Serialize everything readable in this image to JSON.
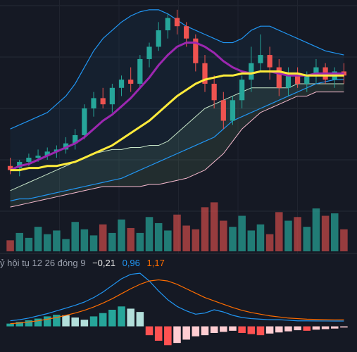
{
  "colors": {
    "background": "#151924",
    "up": "#26a69a",
    "down": "#ef5350",
    "ma_fast": "#9c27b0",
    "ma_slow": "#ffeb3b",
    "bb_band": "#2196f3",
    "cloud_top": "#c8e6c9",
    "cloud_bottom": "#f8bbd0",
    "macd": "#2196f3",
    "signal": "#ff6d00"
  },
  "macd_legend": {
    "label": "ỷ hội tụ 12 26 đóng 9",
    "hist": "−0,21",
    "macd": "0,96",
    "signal": "1,17"
  },
  "chart_data": [
    {
      "type": "candlestick",
      "ylim": [
        0,
        100
      ],
      "grid": true,
      "candles": [
        {
          "o": 22,
          "h": 26,
          "l": 18,
          "c": 20
        },
        {
          "o": 21,
          "h": 25,
          "l": 17,
          "c": 24
        },
        {
          "o": 24,
          "h": 28,
          "l": 22,
          "c": 26
        },
        {
          "o": 26,
          "h": 30,
          "l": 24,
          "c": 27
        },
        {
          "o": 27,
          "h": 31,
          "l": 25,
          "c": 29
        },
        {
          "o": 29,
          "h": 32,
          "l": 26,
          "c": 30
        },
        {
          "o": 30,
          "h": 36,
          "l": 28,
          "c": 33
        },
        {
          "o": 33,
          "h": 40,
          "l": 30,
          "c": 37
        },
        {
          "o": 37,
          "h": 52,
          "l": 35,
          "c": 50
        },
        {
          "o": 50,
          "h": 58,
          "l": 46,
          "c": 55
        },
        {
          "o": 55,
          "h": 60,
          "l": 50,
          "c": 52
        },
        {
          "o": 52,
          "h": 62,
          "l": 48,
          "c": 60
        },
        {
          "o": 60,
          "h": 66,
          "l": 56,
          "c": 64
        },
        {
          "o": 64,
          "h": 70,
          "l": 58,
          "c": 62
        },
        {
          "o": 62,
          "h": 76,
          "l": 60,
          "c": 74
        },
        {
          "o": 74,
          "h": 82,
          "l": 70,
          "c": 80
        },
        {
          "o": 80,
          "h": 92,
          "l": 78,
          "c": 88
        },
        {
          "o": 88,
          "h": 96,
          "l": 84,
          "c": 94
        },
        {
          "o": 94,
          "h": 98,
          "l": 86,
          "c": 90
        },
        {
          "o": 90,
          "h": 92,
          "l": 80,
          "c": 84
        },
        {
          "o": 84,
          "h": 86,
          "l": 68,
          "c": 72
        },
        {
          "o": 72,
          "h": 76,
          "l": 58,
          "c": 62
        },
        {
          "o": 62,
          "h": 66,
          "l": 50,
          "c": 54
        },
        {
          "o": 54,
          "h": 58,
          "l": 40,
          "c": 44
        },
        {
          "o": 44,
          "h": 56,
          "l": 42,
          "c": 54
        },
        {
          "o": 54,
          "h": 66,
          "l": 50,
          "c": 64
        },
        {
          "o": 64,
          "h": 80,
          "l": 58,
          "c": 72
        },
        {
          "o": 72,
          "h": 86,
          "l": 68,
          "c": 76
        },
        {
          "o": 76,
          "h": 80,
          "l": 64,
          "c": 70
        },
        {
          "o": 70,
          "h": 74,
          "l": 56,
          "c": 60
        },
        {
          "o": 60,
          "h": 70,
          "l": 56,
          "c": 66
        },
        {
          "o": 66,
          "h": 70,
          "l": 60,
          "c": 62
        },
        {
          "o": 62,
          "h": 68,
          "l": 58,
          "c": 66
        },
        {
          "o": 66,
          "h": 74,
          "l": 62,
          "c": 70
        },
        {
          "o": 70,
          "h": 72,
          "l": 62,
          "c": 64
        },
        {
          "o": 64,
          "h": 70,
          "l": 60,
          "c": 68
        },
        {
          "o": 68,
          "h": 72,
          "l": 62,
          "c": 66
        }
      ],
      "ma_fast": [
        20,
        22,
        23,
        25,
        27,
        29,
        31,
        33,
        36,
        40,
        44,
        47,
        51,
        55,
        60,
        65,
        71,
        76,
        80,
        82,
        82,
        80,
        77,
        73,
        70,
        68,
        67,
        68,
        68,
        67,
        66,
        66,
        66,
        67,
        67,
        67,
        67
      ],
      "ma_slow": [
        20,
        20,
        21,
        21,
        22,
        22,
        23,
        24,
        26,
        28,
        30,
        32,
        35,
        38,
        41,
        44,
        48,
        52,
        56,
        59,
        62,
        64,
        65,
        66,
        66,
        67,
        67,
        68,
        68,
        68,
        67,
        67,
        66,
        66,
        66,
        66,
        66
      ],
      "bb_upper": [
        40,
        42,
        44,
        46,
        48,
        52,
        56,
        62,
        70,
        78,
        84,
        88,
        92,
        95,
        97,
        98,
        98,
        96,
        93,
        90,
        88,
        86,
        84,
        82,
        82,
        84,
        88,
        90,
        90,
        88,
        86,
        84,
        82,
        80,
        78,
        77,
        76
      ],
      "bb_lower": [
        5,
        6,
        6,
        7,
        8,
        9,
        10,
        11,
        12,
        13,
        14,
        15,
        16,
        18,
        20,
        22,
        24,
        26,
        28,
        30,
        32,
        34,
        36,
        40,
        44,
        46,
        48,
        50,
        52,
        54,
        56,
        58,
        60,
        62,
        63,
        64,
        64
      ],
      "cloud_top": [
        10,
        12,
        14,
        16,
        18,
        20,
        22,
        24,
        26,
        28,
        29,
        30,
        30,
        31,
        31,
        32,
        32,
        34,
        38,
        42,
        46,
        50,
        52,
        54,
        56,
        58,
        60,
        60,
        60,
        60,
        60,
        62,
        62,
        62,
        62,
        62,
        62
      ],
      "cloud_bottom": [
        2,
        3,
        4,
        5,
        6,
        7,
        8,
        9,
        10,
        11,
        12,
        12,
        12,
        12,
        12,
        13,
        13,
        14,
        15,
        16,
        18,
        20,
        24,
        28,
        34,
        40,
        44,
        48,
        50,
        52,
        54,
        56,
        56,
        58,
        58,
        58,
        58
      ]
    },
    {
      "type": "bar",
      "values": [
        18,
        30,
        22,
        40,
        28,
        34,
        20,
        48,
        36,
        26,
        44,
        30,
        52,
        38,
        30,
        56,
        46,
        34,
        60,
        42,
        36,
        72,
        80,
        50,
        40,
        58,
        34,
        44,
        28,
        64,
        50,
        56,
        40,
        70,
        58,
        62,
        36
      ],
      "ylim": [
        0,
        100
      ]
    },
    {
      "type": "bar",
      "series": [
        {
          "values": [
            0.5,
            0.8,
            1.1,
            1.4,
            1.8,
            2.1,
            2.0,
            1.6,
            1.2,
            1.8,
            2.4,
            3.0,
            3.6,
            3.2,
            2.6,
            -1.6,
            -2.6,
            -3.4,
            -3.0,
            -2.4,
            -1.8,
            -1.6,
            -1.2,
            -1.0,
            -0.8,
            -1.2,
            -1.4,
            -1.6,
            -1.3,
            -1.1,
            -0.9,
            -0.7,
            -0.8,
            -0.6,
            -0.5,
            -0.4,
            -0.21
          ]
        },
        {
          "values": [
            1.0,
            1.2,
            1.5,
            1.9,
            2.3,
            2.8,
            3.3,
            3.8,
            4.4,
            5.2,
            6.2,
            7.4,
            8.6,
            9.4,
            9.6,
            8.2,
            6.4,
            4.8,
            3.6,
            2.8,
            2.2,
            2.4,
            3.0,
            2.6,
            2.0,
            1.6,
            1.4,
            1.3,
            1.2,
            1.2,
            1.1,
            1.0,
            1.0,
            0.98,
            0.97,
            0.96,
            0.96
          ]
        },
        {
          "values": [
            0.5,
            0.6,
            0.8,
            1.0,
            1.3,
            1.6,
            2.0,
            2.4,
            2.9,
            3.5,
            4.2,
            5.0,
            5.9,
            6.8,
            7.6,
            8.2,
            8.4,
            8.2,
            7.6,
            6.8,
            6.0,
            5.2,
            4.6,
            4.0,
            3.4,
            2.9,
            2.5,
            2.2,
            1.9,
            1.7,
            1.5,
            1.4,
            1.3,
            1.25,
            1.2,
            1.18,
            1.17
          ]
        }
      ],
      "ylim": [
        -4,
        10
      ]
    }
  ]
}
